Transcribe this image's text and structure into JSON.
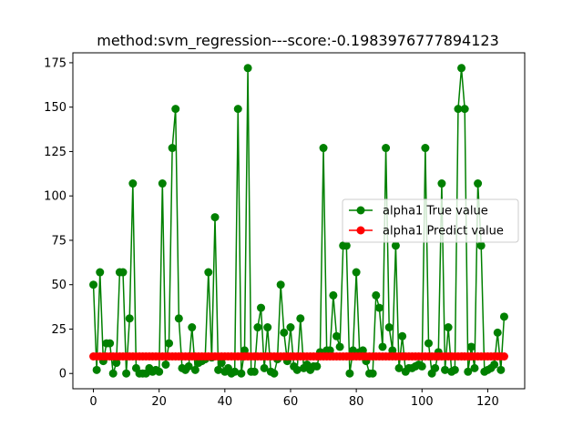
{
  "chart_data": {
    "type": "line",
    "title": "method:svm_regression---score:-0.1983976777894123",
    "xlabel": "",
    "ylabel": "",
    "xlim": [
      -6.25,
      131.25
    ],
    "ylim": [
      -8.6,
      180.6
    ],
    "xticks": [
      0,
      20,
      40,
      60,
      80,
      100,
      120
    ],
    "yticks": [
      0,
      25,
      50,
      75,
      100,
      125,
      150,
      175
    ],
    "grid": false,
    "legend_position": "center-right",
    "series": [
      {
        "name": "alpha1 True value",
        "color": "#008000",
        "marker": "circle",
        "x": [
          0,
          1,
          2,
          3,
          4,
          5,
          6,
          7,
          8,
          9,
          10,
          11,
          12,
          13,
          14,
          15,
          16,
          17,
          18,
          19,
          20,
          21,
          22,
          23,
          24,
          25,
          26,
          27,
          28,
          29,
          30,
          31,
          32,
          33,
          34,
          35,
          36,
          37,
          38,
          39,
          40,
          41,
          42,
          43,
          44,
          45,
          46,
          47,
          48,
          49,
          50,
          51,
          52,
          53,
          54,
          55,
          56,
          57,
          58,
          59,
          60,
          61,
          62,
          63,
          64,
          65,
          66,
          67,
          68,
          69,
          70,
          71,
          72,
          73,
          74,
          75,
          76,
          77,
          78,
          79,
          80,
          81,
          82,
          83,
          84,
          85,
          86,
          87,
          88,
          89,
          90,
          91,
          92,
          93,
          94,
          95,
          96,
          97,
          98,
          99,
          100,
          101,
          102,
          103,
          104,
          105,
          106,
          107,
          108,
          109,
          110,
          111,
          112,
          113,
          114,
          115,
          116,
          117,
          118,
          119,
          120,
          121,
          122,
          123,
          124,
          125
        ],
        "values": [
          50,
          2,
          57,
          7,
          17,
          17,
          0,
          6,
          57,
          57,
          0,
          31,
          107,
          3,
          0,
          0,
          0,
          3,
          1,
          2,
          1,
          107,
          5,
          17,
          127,
          149,
          31,
          3,
          2,
          4,
          26,
          2,
          6,
          7,
          8,
          57,
          9,
          88,
          2,
          6,
          1,
          3,
          0,
          1,
          149,
          0,
          13,
          172,
          1,
          1,
          26,
          37,
          3,
          26,
          1,
          0,
          8,
          50,
          23,
          7,
          26,
          4,
          2,
          31,
          3,
          5,
          2,
          4,
          4,
          12,
          127,
          13,
          13,
          44,
          21,
          15,
          72,
          72,
          0,
          13,
          57,
          12,
          13,
          7,
          0,
          0,
          44,
          37,
          15,
          127,
          26,
          13,
          72,
          3,
          21,
          1,
          3,
          3,
          4,
          5,
          4,
          127,
          17,
          0,
          3,
          12,
          107,
          2,
          26,
          1,
          2,
          149,
          172,
          149,
          1,
          15,
          3,
          107,
          72,
          1,
          2,
          3,
          5,
          23,
          2,
          32
        ]
      },
      {
        "name": "alpha1 Predict value",
        "color": "#ff0000",
        "marker": "circle",
        "x": [
          0,
          1,
          2,
          3,
          4,
          5,
          6,
          7,
          8,
          9,
          10,
          11,
          12,
          13,
          14,
          15,
          16,
          17,
          18,
          19,
          20,
          21,
          22,
          23,
          24,
          25,
          26,
          27,
          28,
          29,
          30,
          31,
          32,
          33,
          34,
          35,
          36,
          37,
          38,
          39,
          40,
          41,
          42,
          43,
          44,
          45,
          46,
          47,
          48,
          49,
          50,
          51,
          52,
          53,
          54,
          55,
          56,
          57,
          58,
          59,
          60,
          61,
          62,
          63,
          64,
          65,
          66,
          67,
          68,
          69,
          70,
          71,
          72,
          73,
          74,
          75,
          76,
          77,
          78,
          79,
          80,
          81,
          82,
          83,
          84,
          85,
          86,
          87,
          88,
          89,
          90,
          91,
          92,
          93,
          94,
          95,
          96,
          97,
          98,
          99,
          100,
          101,
          102,
          103,
          104,
          105,
          106,
          107,
          108,
          109,
          110,
          111,
          112,
          113,
          114,
          115,
          116,
          117,
          118,
          119,
          120,
          121,
          122,
          123,
          124,
          125
        ],
        "values": [
          9.6,
          9.6,
          9.6,
          9.6,
          9.6,
          9.6,
          9.6,
          9.6,
          9.6,
          9.6,
          9.6,
          9.6,
          9.6,
          9.6,
          9.6,
          9.6,
          9.6,
          9.6,
          9.6,
          9.6,
          9.6,
          9.6,
          9.6,
          9.6,
          9.6,
          9.6,
          9.6,
          9.6,
          9.6,
          9.6,
          9.6,
          9.6,
          9.6,
          9.6,
          9.6,
          9.6,
          9.6,
          9.6,
          9.6,
          9.6,
          9.6,
          9.6,
          9.6,
          9.6,
          9.6,
          9.6,
          9.6,
          9.6,
          9.6,
          9.6,
          9.6,
          9.6,
          9.6,
          9.6,
          9.6,
          9.6,
          9.6,
          9.6,
          9.6,
          9.6,
          9.6,
          9.6,
          9.6,
          9.6,
          9.6,
          9.6,
          9.6,
          9.6,
          9.6,
          9.6,
          9.6,
          9.6,
          9.6,
          9.6,
          9.6,
          9.6,
          9.6,
          9.6,
          9.6,
          9.6,
          9.6,
          9.6,
          9.6,
          9.6,
          9.6,
          9.6,
          9.6,
          9.6,
          9.6,
          9.6,
          9.6,
          9.6,
          9.6,
          9.6,
          9.6,
          9.6,
          9.6,
          9.6,
          9.6,
          9.6,
          9.6,
          9.6,
          9.6,
          9.6,
          9.6,
          9.6,
          9.6,
          9.6,
          9.6,
          9.6,
          9.6,
          9.6,
          9.6,
          9.6,
          9.6,
          9.6,
          9.6,
          9.6,
          9.6,
          9.6,
          9.6,
          9.6,
          9.6,
          9.6,
          9.6,
          9.6
        ]
      }
    ]
  }
}
